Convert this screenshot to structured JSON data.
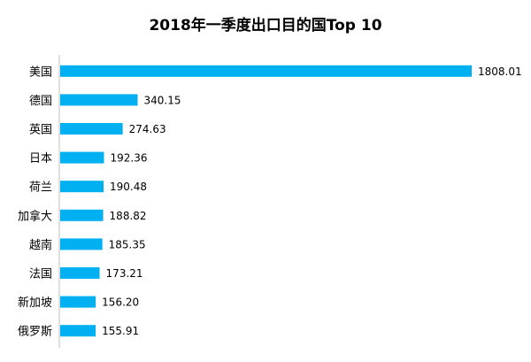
{
  "chart_data": {
    "type": "bar",
    "orientation": "horizontal",
    "title": "2018年一季度出口目的国Top 10",
    "xlabel": "",
    "ylabel": "",
    "categories": [
      "美国",
      "德国",
      "英国",
      "日本",
      "荷兰",
      "加拿大",
      "越南",
      "法国",
      "新加坡",
      "俄罗斯"
    ],
    "values": [
      1808.01,
      340.15,
      274.63,
      192.36,
      190.48,
      188.82,
      185.35,
      173.21,
      156.2,
      155.91
    ],
    "value_labels": [
      "1808.01",
      "340.15",
      "274.63",
      "192.36",
      "190.48",
      "188.82",
      "185.35",
      "173.21",
      "156.20",
      "155.91"
    ],
    "xlim": [
      0,
      1808.01
    ],
    "grid": false,
    "legend": "none",
    "colors": {
      "bar": "#00b0f0",
      "axis": "#bfbfbf"
    }
  }
}
